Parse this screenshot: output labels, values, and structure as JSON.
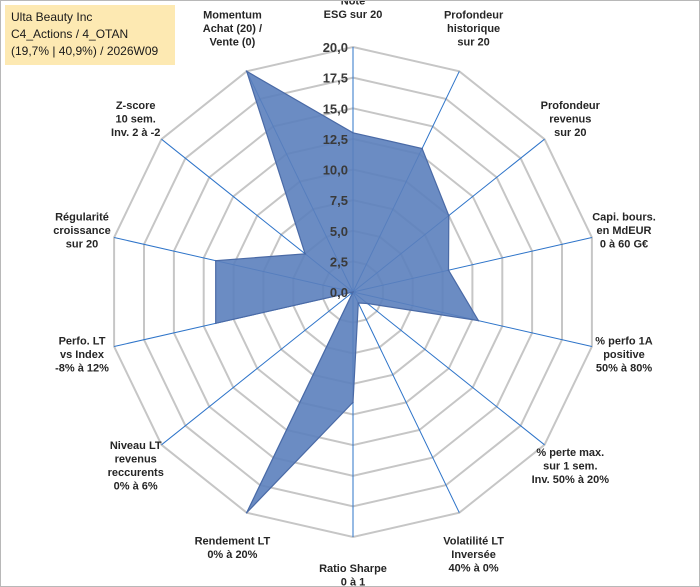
{
  "title_box": {
    "line1": "Ulta Beauty Inc",
    "line2": "C4_Actions / 4_OTAN",
    "line3": "(19,7% | 40,9%) / 2026W09"
  },
  "colors": {
    "fill": "#5b7fbd",
    "stroke": "#4a6aa6",
    "grid": "#c6c6c6",
    "spoke": "#2e74c9",
    "title_bg": "#fde9b2"
  },
  "chart_data": {
    "type": "radar",
    "rmin": 0,
    "rmax": 20,
    "ticks": [
      "0,0",
      "2,5",
      "5,0",
      "7,5",
      "10,0",
      "12,5",
      "15,0",
      "17,5",
      "20,0"
    ],
    "tick_values": [
      0,
      2.5,
      5,
      7.5,
      10,
      12.5,
      15,
      17.5,
      20
    ],
    "axes": [
      {
        "lines": [
          "Note",
          "ESG sur 20"
        ],
        "anchor": "middle"
      },
      {
        "lines": [
          "Profondeur",
          "historique",
          "sur 20"
        ],
        "anchor": "middle"
      },
      {
        "lines": [
          "Profondeur",
          "revenus",
          "sur 20"
        ],
        "anchor": "middle"
      },
      {
        "lines": [
          "Capi. bours.",
          "en MdEUR",
          "0 à 60 G€"
        ],
        "anchor": "middle"
      },
      {
        "lines": [
          "% perfo 1A",
          "positive",
          "50% à 80%"
        ],
        "anchor": "middle"
      },
      {
        "lines": [
          "% perte max.",
          "sur 1 sem.",
          "Inv. 50% à 20%"
        ],
        "anchor": "middle"
      },
      {
        "lines": [
          "Volatilité LT",
          "Inversée",
          "40% à 0%"
        ],
        "anchor": "middle"
      },
      {
        "lines": [
          "Ratio Sharpe",
          "0 à 1"
        ],
        "anchor": "middle"
      },
      {
        "lines": [
          "Rendement LT",
          "0% à 20%"
        ],
        "anchor": "middle"
      },
      {
        "lines": [
          "Niveau LT",
          "revenus",
          "reccurents",
          "0% à 6%"
        ],
        "anchor": "middle"
      },
      {
        "lines": [
          "Perfo. LT",
          "vs Index",
          "-8% à 12%"
        ],
        "anchor": "middle"
      },
      {
        "lines": [
          "Régularité",
          "croissance",
          "sur 20"
        ],
        "anchor": "middle"
      },
      {
        "lines": [
          "Z-score",
          "10 sem.",
          "Inv. 2 à -2"
        ],
        "anchor": "middle"
      },
      {
        "lines": [
          "Momentum",
          "Achat (20) /",
          "Vente (0)"
        ],
        "anchor": "middle"
      }
    ],
    "series": [
      {
        "values": [
          13,
          13,
          10,
          8,
          10.5,
          1.5,
          1,
          9,
          20,
          0,
          11.5,
          11.5,
          5,
          20
        ]
      }
    ],
    "grid": true,
    "legend": "none"
  }
}
